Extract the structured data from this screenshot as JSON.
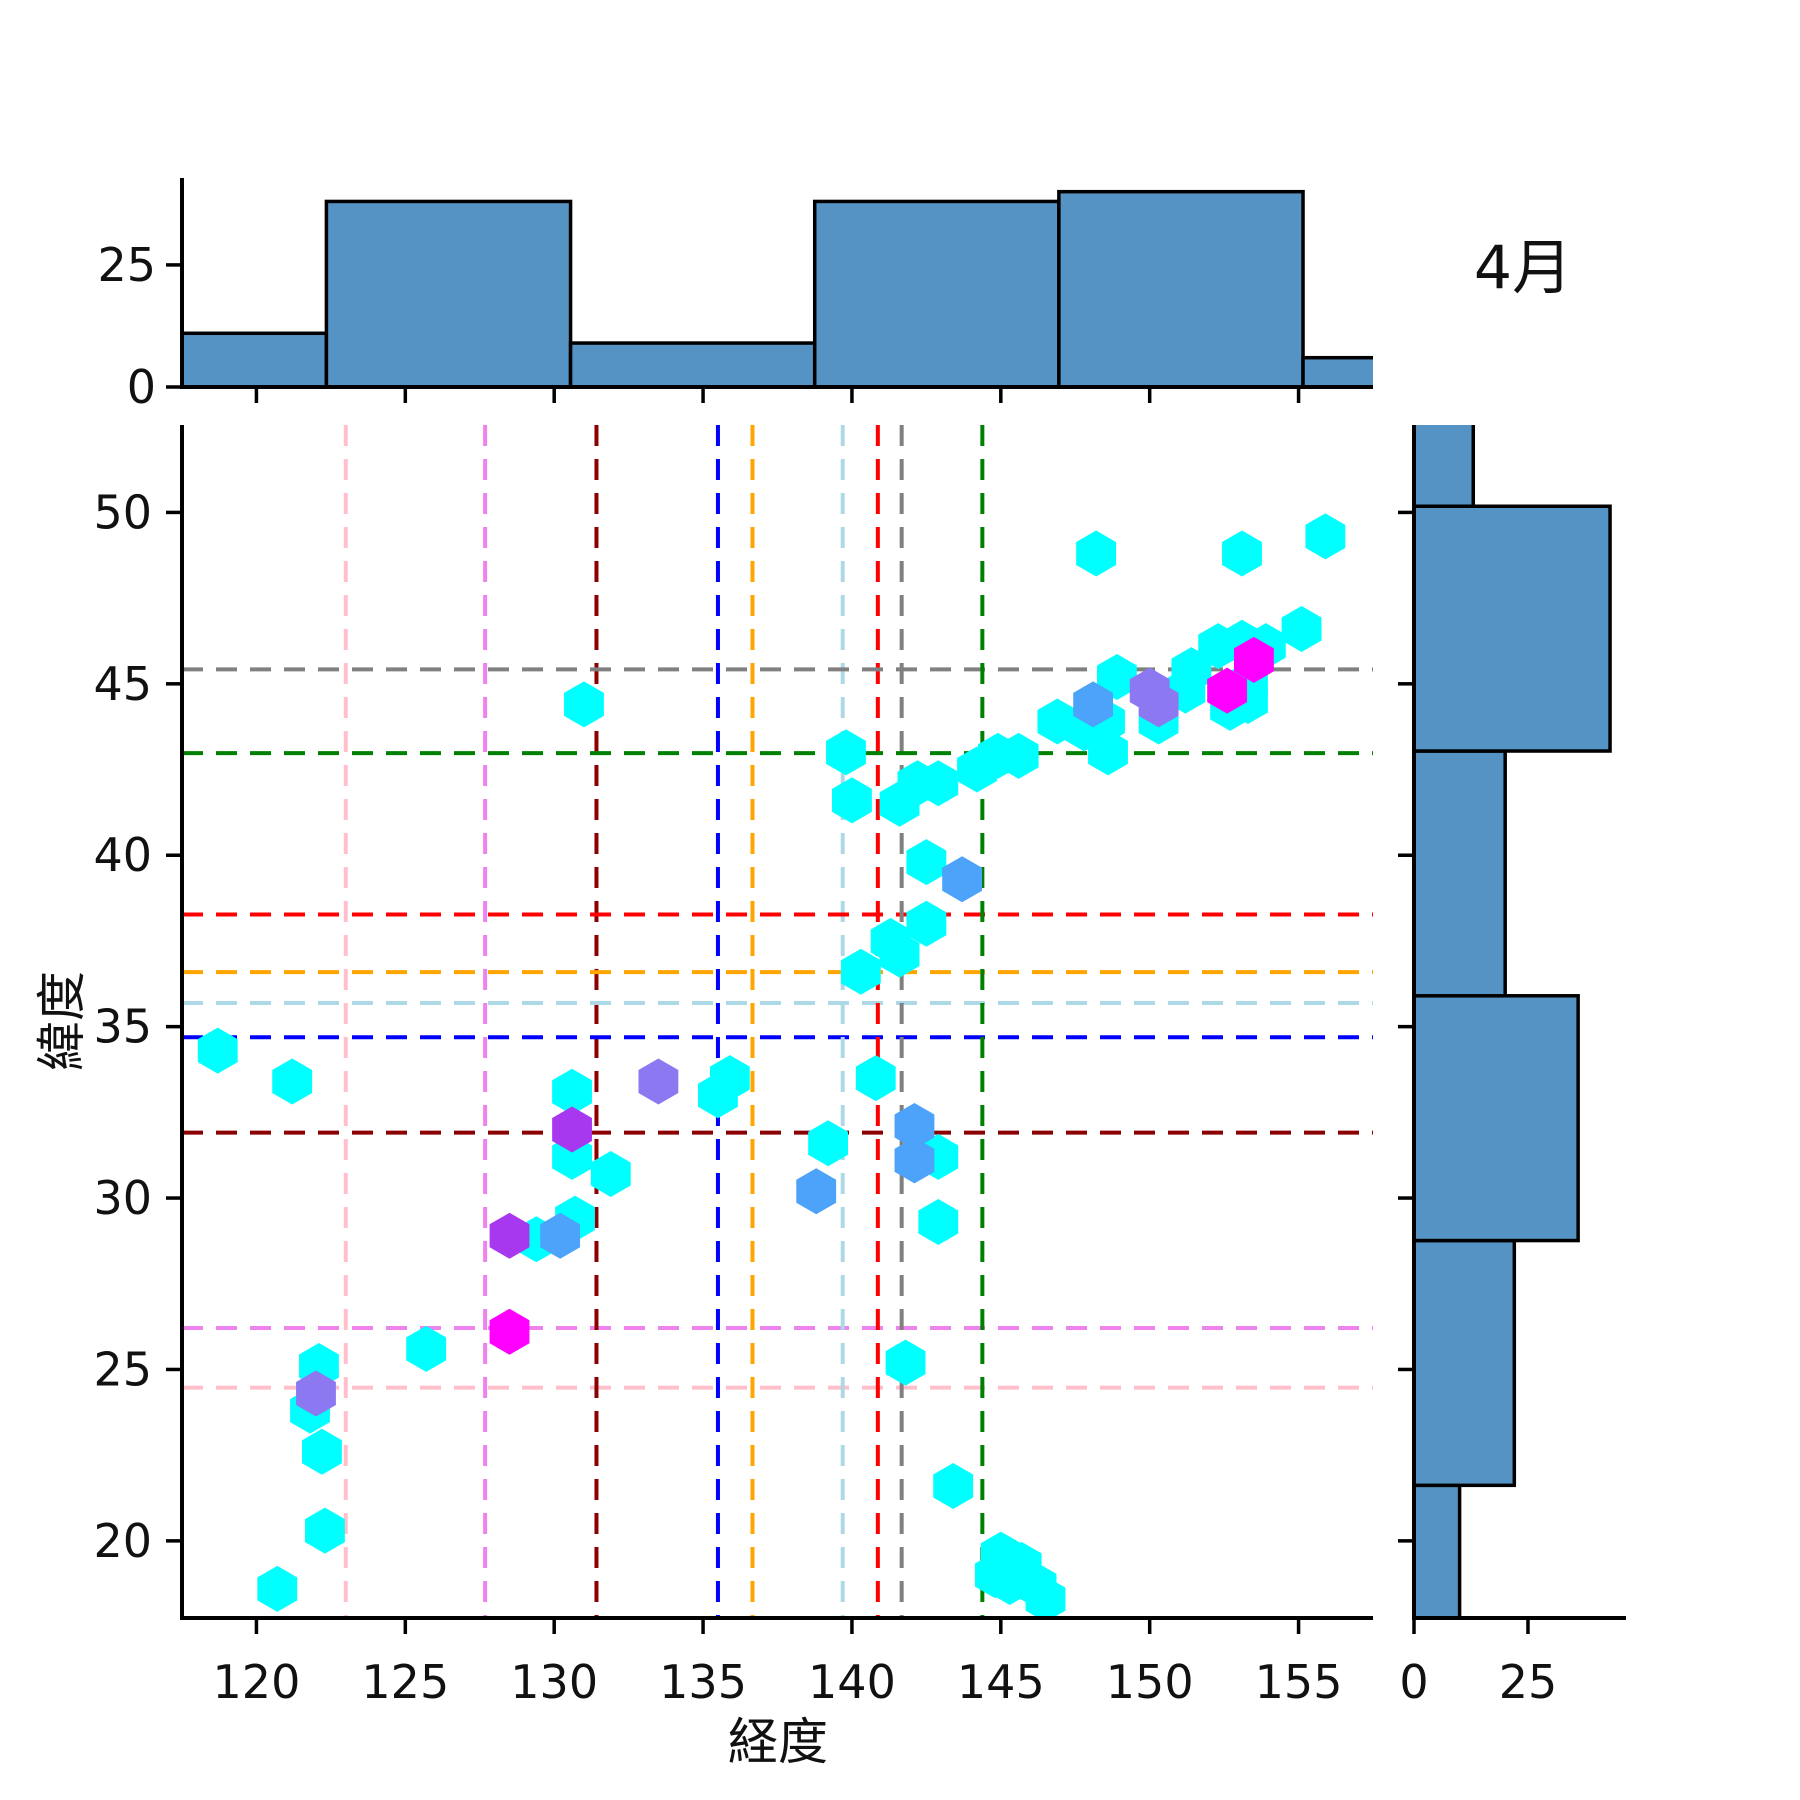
{
  "chart_data": {
    "type": "hexbin_joint_plot",
    "title": "4月",
    "xlabel": "経度",
    "ylabel": "緯度",
    "xlim": [
      117.5,
      157.5
    ],
    "ylim": [
      17.75,
      52.55
    ],
    "xticks": [
      120,
      125,
      130,
      135,
      140,
      145,
      150,
      155
    ],
    "yticks": [
      20,
      25,
      30,
      35,
      40,
      45,
      50
    ],
    "grid": false,
    "colormap": "cool",
    "hist_color": "#5593c4",
    "hist_edge_color": "#000000",
    "palette": {
      "cyan": "#00ffff",
      "blue": "#4da2fa",
      "purple": "#8c78f0",
      "violet": "#a838f0",
      "magenta": "#ff00ff"
    },
    "reference_lines": [
      {
        "name": "pink",
        "color": "#ffc0cb",
        "lon": 123.0,
        "lat": 24.47
      },
      {
        "name": "violet",
        "color": "#ee82ee",
        "lon": 127.68,
        "lat": 26.21
      },
      {
        "name": "darkred",
        "color": "#8b0000",
        "lon": 131.42,
        "lat": 31.91
      },
      {
        "name": "blue",
        "color": "#0000ff",
        "lon": 135.5,
        "lat": 34.69
      },
      {
        "name": "orange",
        "color": "#ffa500",
        "lon": 136.66,
        "lat": 36.59
      },
      {
        "name": "lightblue",
        "color": "#add8e6",
        "lon": 139.69,
        "lat": 35.69
      },
      {
        "name": "red",
        "color": "#ff0000",
        "lon": 140.87,
        "lat": 38.27
      },
      {
        "name": "gray",
        "color": "#808080",
        "lon": 141.67,
        "lat": 45.42
      },
      {
        "name": "green",
        "color": "#008000",
        "lon": 144.38,
        "lat": 42.98
      }
    ],
    "points": [
      {
        "x": 148.2,
        "y": 48.8,
        "c": "cyan"
      },
      {
        "x": 153.1,
        "y": 48.8,
        "c": "cyan"
      },
      {
        "x": 155.9,
        "y": 49.3,
        "c": "cyan"
      },
      {
        "x": 155.1,
        "y": 46.6,
        "c": "cyan"
      },
      {
        "x": 152.3,
        "y": 46.1,
        "c": "cyan"
      },
      {
        "x": 153.1,
        "y": 46.2,
        "c": "cyan"
      },
      {
        "x": 153.9,
        "y": 46.1,
        "c": "cyan"
      },
      {
        "x": 148.9,
        "y": 45.2,
        "c": "cyan"
      },
      {
        "x": 151.4,
        "y": 45.4,
        "c": "cyan"
      },
      {
        "x": 151.2,
        "y": 44.8,
        "c": "cyan"
      },
      {
        "x": 153.3,
        "y": 45.0,
        "c": "cyan"
      },
      {
        "x": 146.9,
        "y": 43.9,
        "c": "cyan"
      },
      {
        "x": 147.8,
        "y": 43.7,
        "c": "cyan"
      },
      {
        "x": 148.5,
        "y": 43.9,
        "c": "cyan"
      },
      {
        "x": 150.3,
        "y": 43.9,
        "c": "cyan"
      },
      {
        "x": 152.7,
        "y": 44.3,
        "c": "cyan"
      },
      {
        "x": 153.3,
        "y": 44.5,
        "c": "cyan"
      },
      {
        "x": 148.6,
        "y": 43.0,
        "c": "cyan"
      },
      {
        "x": 131.0,
        "y": 44.4,
        "c": "cyan"
      },
      {
        "x": 139.8,
        "y": 43.0,
        "c": "cyan"
      },
      {
        "x": 144.2,
        "y": 42.5,
        "c": "cyan"
      },
      {
        "x": 144.9,
        "y": 42.9,
        "c": "cyan"
      },
      {
        "x": 145.6,
        "y": 42.9,
        "c": "cyan"
      },
      {
        "x": 140.0,
        "y": 41.6,
        "c": "cyan"
      },
      {
        "x": 141.6,
        "y": 41.5,
        "c": "cyan"
      },
      {
        "x": 142.2,
        "y": 42.1,
        "c": "cyan"
      },
      {
        "x": 142.9,
        "y": 42.1,
        "c": "cyan"
      },
      {
        "x": 142.5,
        "y": 39.8,
        "c": "cyan"
      },
      {
        "x": 142.5,
        "y": 38.0,
        "c": "cyan"
      },
      {
        "x": 141.3,
        "y": 37.5,
        "c": "cyan"
      },
      {
        "x": 141.6,
        "y": 37.1,
        "c": "cyan"
      },
      {
        "x": 140.3,
        "y": 36.6,
        "c": "cyan"
      },
      {
        "x": 135.9,
        "y": 33.5,
        "c": "cyan"
      },
      {
        "x": 135.5,
        "y": 33.0,
        "c": "cyan"
      },
      {
        "x": 140.8,
        "y": 33.5,
        "c": "cyan"
      },
      {
        "x": 139.2,
        "y": 31.6,
        "c": "cyan"
      },
      {
        "x": 142.9,
        "y": 31.2,
        "c": "cyan"
      },
      {
        "x": 142.9,
        "y": 29.3,
        "c": "cyan"
      },
      {
        "x": 118.7,
        "y": 34.3,
        "c": "cyan"
      },
      {
        "x": 121.2,
        "y": 33.4,
        "c": "cyan"
      },
      {
        "x": 130.6,
        "y": 33.1,
        "c": "cyan"
      },
      {
        "x": 130.6,
        "y": 31.2,
        "c": "cyan"
      },
      {
        "x": 131.9,
        "y": 30.7,
        "c": "cyan"
      },
      {
        "x": 130.7,
        "y": 29.4,
        "c": "cyan"
      },
      {
        "x": 129.4,
        "y": 28.8,
        "c": "cyan"
      },
      {
        "x": 125.7,
        "y": 25.6,
        "c": "cyan"
      },
      {
        "x": 122.1,
        "y": 25.1,
        "c": "cyan"
      },
      {
        "x": 121.8,
        "y": 23.8,
        "c": "cyan"
      },
      {
        "x": 122.2,
        "y": 22.6,
        "c": "cyan"
      },
      {
        "x": 122.3,
        "y": 20.3,
        "c": "cyan"
      },
      {
        "x": 120.7,
        "y": 18.6,
        "c": "cyan"
      },
      {
        "x": 141.8,
        "y": 25.2,
        "c": "cyan"
      },
      {
        "x": 143.4,
        "y": 21.6,
        "c": "cyan"
      },
      {
        "x": 145.0,
        "y": 19.6,
        "c": "cyan"
      },
      {
        "x": 145.7,
        "y": 19.3,
        "c": "cyan"
      },
      {
        "x": 145.3,
        "y": 18.8,
        "c": "cyan"
      },
      {
        "x": 146.2,
        "y": 18.7,
        "c": "cyan"
      },
      {
        "x": 146.5,
        "y": 18.3,
        "c": "cyan"
      },
      {
        "x": 144.8,
        "y": 19.0,
        "c": "cyan"
      },
      {
        "x": 148.1,
        "y": 44.4,
        "c": "blue"
      },
      {
        "x": 143.7,
        "y": 39.3,
        "c": "blue"
      },
      {
        "x": 142.1,
        "y": 32.1,
        "c": "blue"
      },
      {
        "x": 142.1,
        "y": 31.1,
        "c": "blue"
      },
      {
        "x": 138.8,
        "y": 30.2,
        "c": "blue"
      },
      {
        "x": 130.2,
        "y": 28.9,
        "c": "blue"
      },
      {
        "x": 150.0,
        "y": 44.8,
        "c": "purple"
      },
      {
        "x": 150.3,
        "y": 44.4,
        "c": "purple"
      },
      {
        "x": 133.5,
        "y": 33.4,
        "c": "purple"
      },
      {
        "x": 122.0,
        "y": 24.3,
        "c": "purple"
      },
      {
        "x": 130.6,
        "y": 32.0,
        "c": "violet"
      },
      {
        "x": 128.5,
        "y": 28.9,
        "c": "violet"
      },
      {
        "x": 153.5,
        "y": 45.7,
        "c": "magenta"
      },
      {
        "x": 152.6,
        "y": 44.8,
        "c": "magenta"
      },
      {
        "x": 128.5,
        "y": 26.1,
        "c": "magenta"
      }
    ],
    "top_hist": {
      "bin_edges": [
        114.15,
        122.35,
        130.55,
        138.75,
        146.95,
        155.15,
        163.35
      ],
      "counts": [
        11,
        38,
        9,
        38,
        40,
        6
      ],
      "ticks": [
        0,
        25
      ],
      "vmax": 42.8
    },
    "right_hist": {
      "bin_edges": [
        14.5,
        21.62,
        28.76,
        35.9,
        43.04,
        50.18,
        57.32
      ],
      "counts": [
        10,
        22,
        36,
        20,
        43,
        13
      ],
      "ticks": [
        0,
        25
      ],
      "vmax": 46.5
    }
  }
}
